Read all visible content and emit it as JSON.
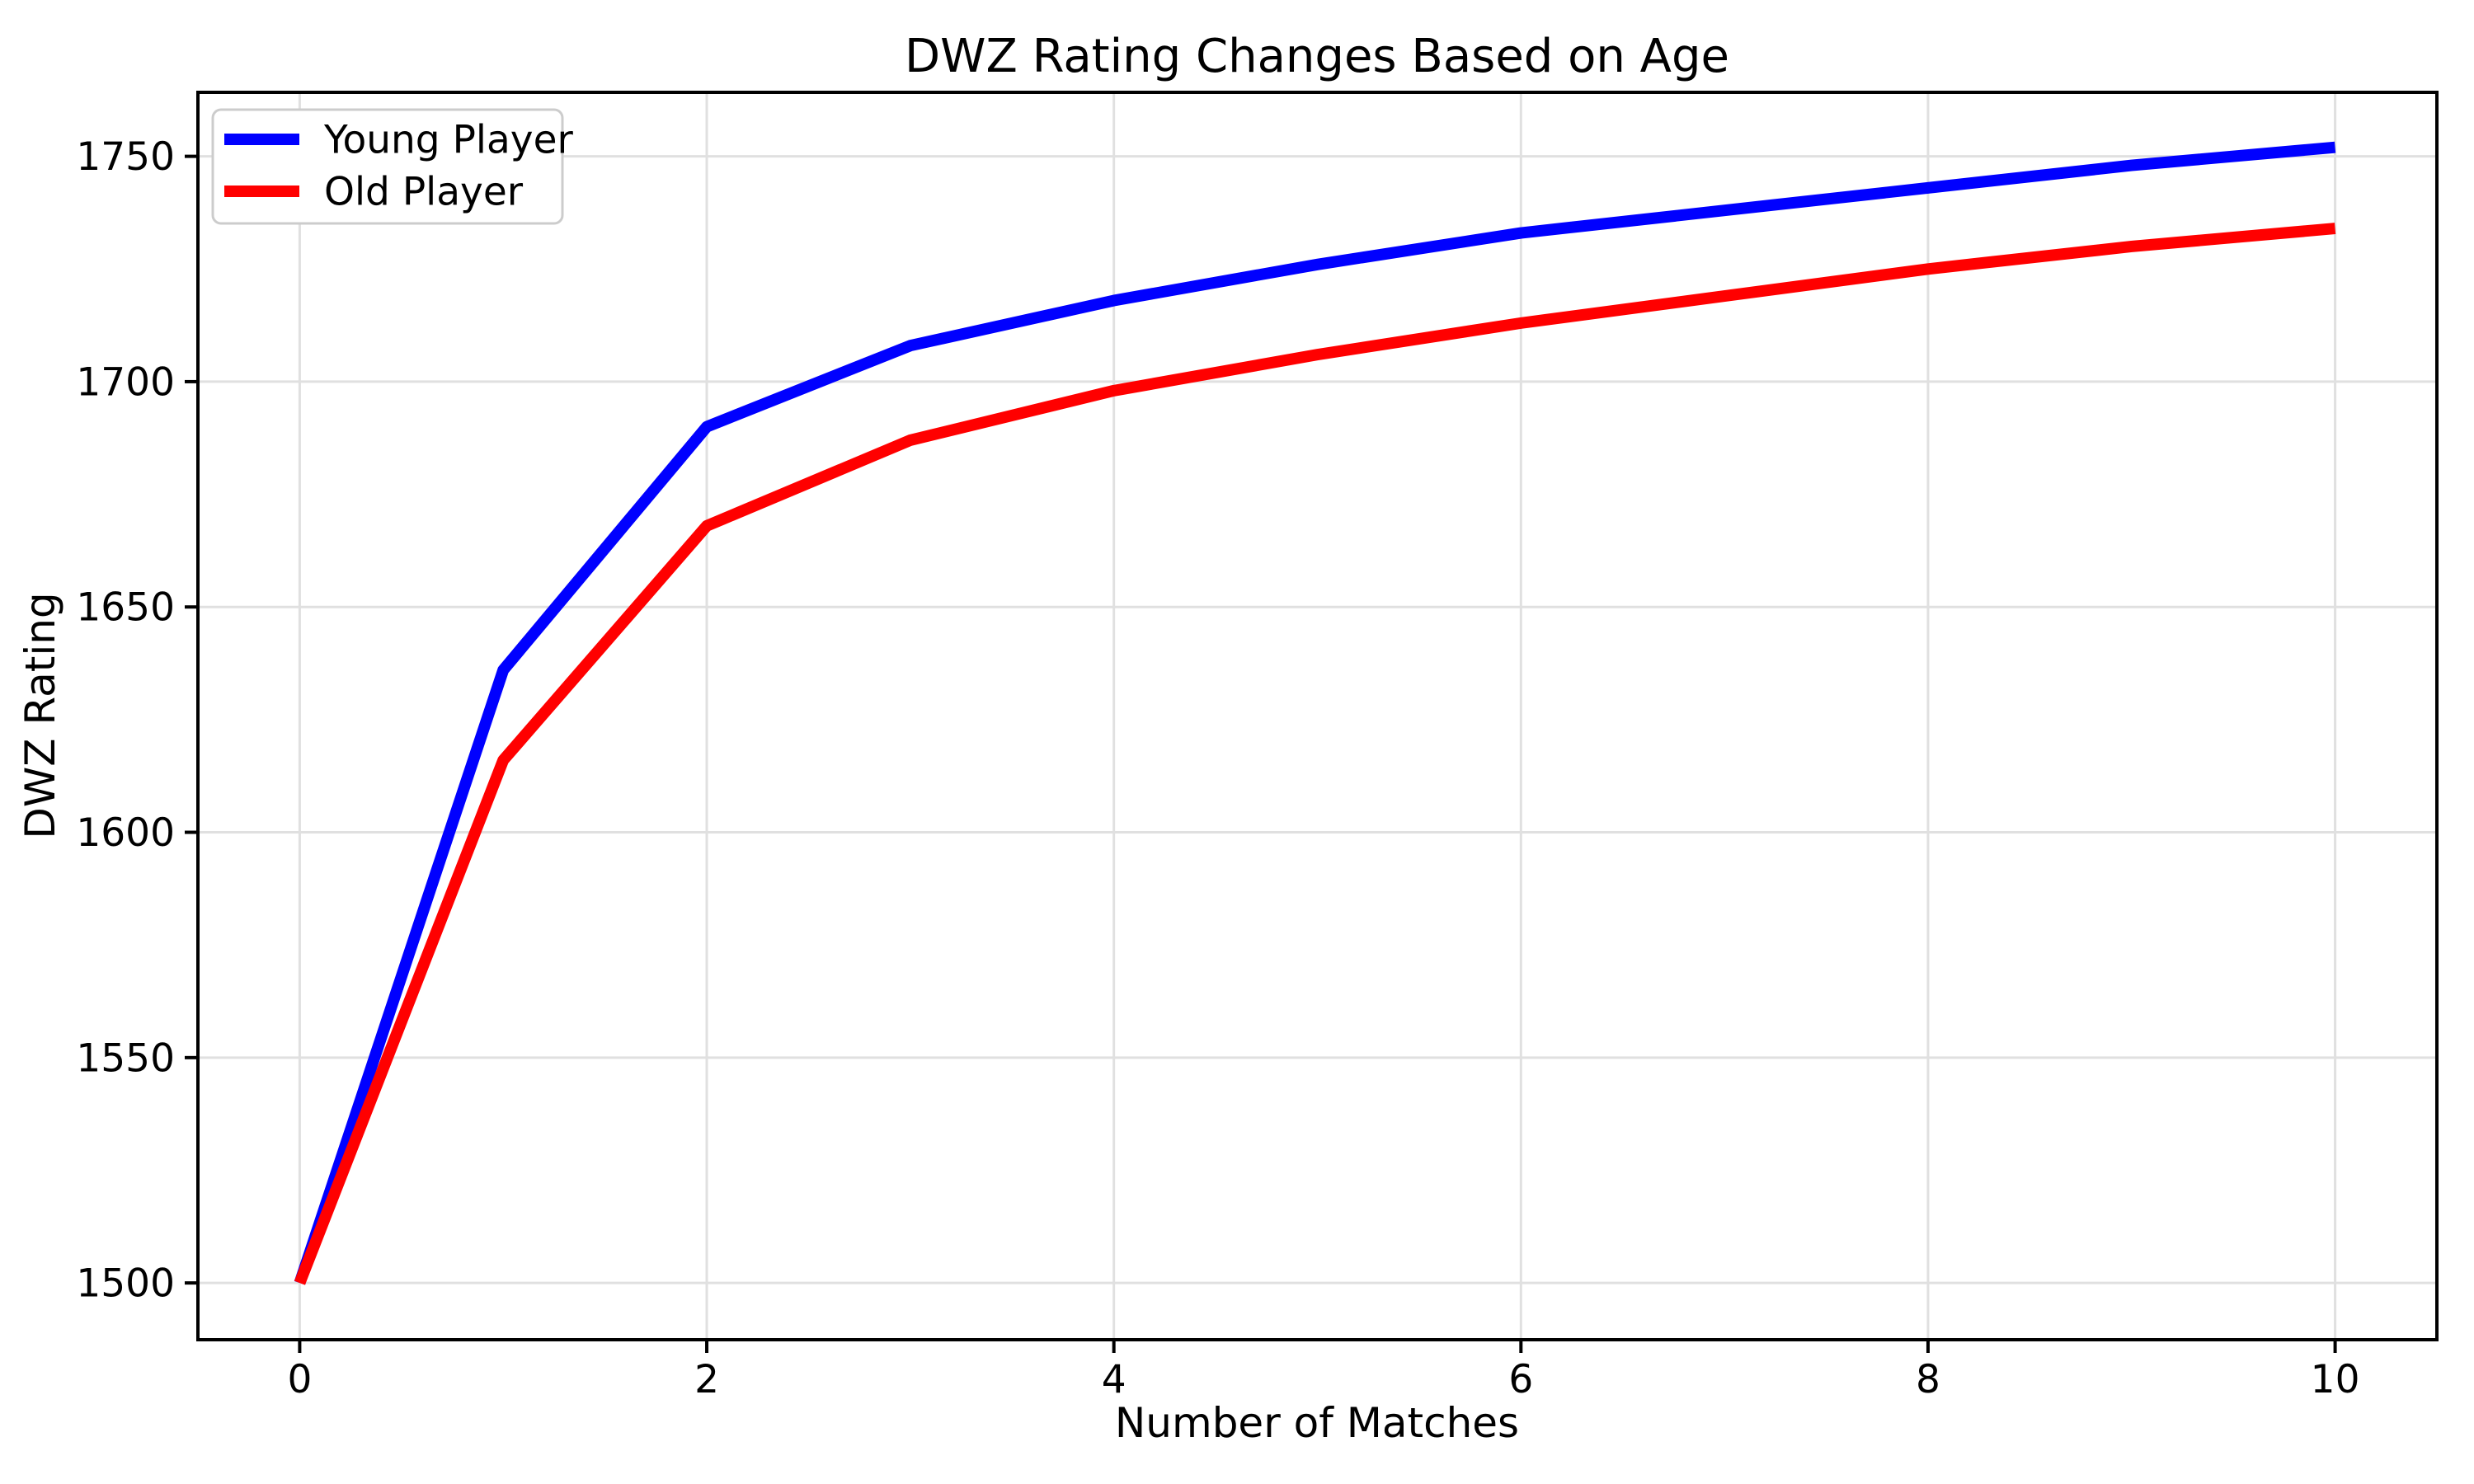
{
  "chart_data": {
    "type": "line",
    "title": "DWZ Rating Changes Based on Age",
    "xlabel": "Number of Matches",
    "ylabel": "DWZ Rating",
    "x": [
      0,
      1,
      2,
      3,
      4,
      5,
      6,
      7,
      8,
      9,
      10
    ],
    "series": [
      {
        "name": "Young Player",
        "color": "#0000ff",
        "values": [
          1500,
          1636,
          1690,
          1708,
          1718,
          1726,
          1733,
          1738,
          1743,
          1748,
          1752
        ]
      },
      {
        "name": "Old Player",
        "color": "#ff0000",
        "values": [
          1500,
          1616,
          1668,
          1687,
          1698,
          1706,
          1713,
          1719,
          1725,
          1730,
          1734
        ]
      }
    ],
    "xticks": [
      0,
      2,
      4,
      6,
      8,
      10
    ],
    "yticks": [
      1500,
      1550,
      1600,
      1650,
      1700,
      1750
    ],
    "xlim": [
      -0.5,
      10.5
    ],
    "ylim": [
      1487.4,
      1764.2
    ],
    "grid": true,
    "grid_color": "#e0e0e0",
    "background_color": "#ffffff",
    "legend": {
      "position": "upper left",
      "labels": [
        "Young Player",
        "Old Player"
      ]
    }
  }
}
